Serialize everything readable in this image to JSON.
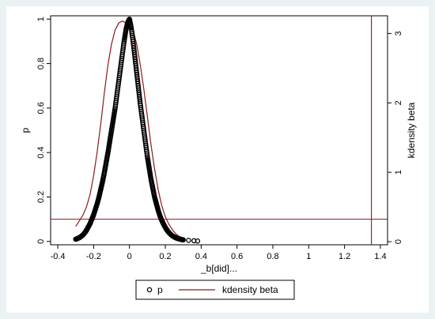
{
  "chart_data": {
    "type": "scatter",
    "xlabel": "_b[did]...",
    "ylabel_left": "p",
    "ylabel_right": "kdensity beta",
    "x_ticks": [
      -0.4,
      -0.2,
      0,
      0.2,
      0.4,
      0.6,
      0.8,
      1,
      1.2,
      1.4
    ],
    "x_tick_labels": [
      "-0.4",
      "-0.2",
      "0",
      "0.2",
      "0.4",
      "0.6",
      "0.8",
      "1",
      "1.2",
      "1.4"
    ],
    "y_ticks": [
      0,
      0.2,
      0.4,
      0.6,
      0.8,
      1
    ],
    "y_tick_labels": [
      "0",
      "0.2",
      "0.4",
      "0.6",
      "0.8",
      "1"
    ],
    "y2_ticks": [
      0,
      1,
      2,
      3
    ],
    "y2_tick_labels": [
      "0",
      "1",
      "2",
      "3"
    ],
    "xlim": [
      -0.44,
      1.44
    ],
    "ylim": [
      -0.015,
      1.015
    ],
    "y2lim": [
      -0.045,
      3.255
    ],
    "grid": false,
    "legend_position": "bottom",
    "series": [
      {
        "name": "p",
        "kind": "scatter",
        "marker": "hollow circle",
        "color": "#000000",
        "x": [
          -0.3,
          -0.29,
          -0.28,
          -0.27,
          -0.26,
          -0.25,
          -0.24,
          -0.23,
          -0.22,
          -0.21,
          -0.2,
          -0.19,
          -0.18,
          -0.17,
          -0.16,
          -0.15,
          -0.14,
          -0.13,
          -0.12,
          -0.11,
          -0.1,
          -0.09,
          -0.08,
          -0.07,
          -0.06,
          -0.05,
          -0.04,
          -0.03,
          -0.02,
          -0.01,
          0,
          0.01,
          0.02,
          0.03,
          0.04,
          0.05,
          0.06,
          0.07,
          0.08,
          0.09,
          0.1,
          0.11,
          0.12,
          0.13,
          0.14,
          0.15,
          0.16,
          0.17,
          0.18,
          0.19,
          0.2,
          0.21,
          0.22,
          0.23,
          0.24,
          0.25,
          0.26,
          0.27,
          0.28,
          0.29,
          0.3,
          0.33,
          0.36,
          0.38
        ],
        "y": [
          0.01,
          0.013,
          0.017,
          0.022,
          0.029,
          0.038,
          0.05,
          0.065,
          0.08,
          0.1,
          0.12,
          0.145,
          0.17,
          0.2,
          0.235,
          0.27,
          0.31,
          0.355,
          0.4,
          0.45,
          0.5,
          0.55,
          0.6,
          0.66,
          0.72,
          0.78,
          0.84,
          0.9,
          0.95,
          0.985,
          1.0,
          0.96,
          0.9,
          0.83,
          0.76,
          0.69,
          0.62,
          0.56,
          0.5,
          0.44,
          0.38,
          0.33,
          0.28,
          0.24,
          0.2,
          0.17,
          0.14,
          0.115,
          0.095,
          0.078,
          0.063,
          0.05,
          0.04,
          0.032,
          0.025,
          0.02,
          0.016,
          0.013,
          0.011,
          0.009,
          0.007,
          0.005,
          0.003,
          0.002
        ]
      },
      {
        "name": "kdensity beta",
        "kind": "line",
        "axis": "right",
        "color": "#8b1a1a",
        "x": [
          -0.3,
          -0.28,
          -0.26,
          -0.24,
          -0.22,
          -0.2,
          -0.18,
          -0.16,
          -0.14,
          -0.12,
          -0.1,
          -0.08,
          -0.06,
          -0.04,
          -0.02,
          0,
          0.02,
          0.04,
          0.06,
          0.08,
          0.1,
          0.12,
          0.14,
          0.16,
          0.18,
          0.2,
          0.22,
          0.24,
          0.26,
          0.28,
          0.3
        ],
        "y": [
          0.22,
          0.3,
          0.38,
          0.5,
          0.68,
          0.95,
          1.3,
          1.7,
          2.15,
          2.55,
          2.85,
          3.05,
          3.15,
          3.18,
          3.15,
          3.12,
          3.05,
          2.85,
          2.55,
          2.2,
          1.8,
          1.4,
          1.05,
          0.75,
          0.52,
          0.36,
          0.25,
          0.17,
          0.11,
          0.07,
          0.04
        ]
      }
    ],
    "reference_lines": [
      {
        "orientation": "horizontal",
        "axis": "left",
        "value": 0.1,
        "color": "#8b1a1a"
      },
      {
        "orientation": "vertical",
        "value": 1.35,
        "color": "#8b1a1a"
      }
    ]
  }
}
